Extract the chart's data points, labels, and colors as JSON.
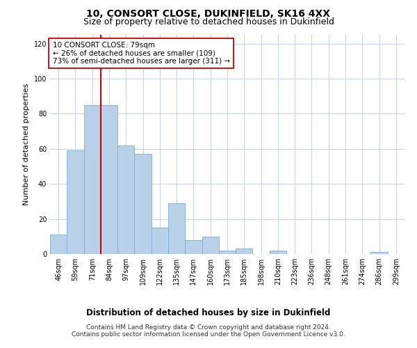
{
  "title": "10, CONSORT CLOSE, DUKINFIELD, SK16 4XX",
  "subtitle": "Size of property relative to detached houses in Dukinfield",
  "xlabel": "Distribution of detached houses by size in Dukinfield",
  "ylabel": "Number of detached properties",
  "categories": [
    "46sqm",
    "59sqm",
    "71sqm",
    "84sqm",
    "97sqm",
    "109sqm",
    "122sqm",
    "135sqm",
    "147sqm",
    "160sqm",
    "173sqm",
    "185sqm",
    "198sqm",
    "210sqm",
    "223sqm",
    "236sqm",
    "248sqm",
    "261sqm",
    "274sqm",
    "286sqm",
    "299sqm"
  ],
  "values": [
    11,
    59,
    85,
    85,
    62,
    57,
    15,
    29,
    8,
    10,
    2,
    3,
    0,
    2,
    0,
    0,
    0,
    0,
    0,
    1,
    0
  ],
  "bar_color": "#b8d0e8",
  "bar_edge_color": "#7aafd4",
  "bar_width": 1.0,
  "vline_x": 2.5,
  "vline_color": "#cc0000",
  "annotation_text": "10 CONSORT CLOSE: 79sqm\n← 26% of detached houses are smaller (109)\n73% of semi-detached houses are larger (311) →",
  "ylim": [
    0,
    125
  ],
  "yticks": [
    0,
    20,
    40,
    60,
    80,
    100,
    120
  ],
  "bg_color": "#ffffff",
  "grid_color": "#c8d4e8",
  "footer_line1": "Contains HM Land Registry data © Crown copyright and database right 2024.",
  "footer_line2": "Contains public sector information licensed under the Open Government Licence v3.0.",
  "title_fontsize": 10,
  "subtitle_fontsize": 9,
  "xlabel_fontsize": 8.5,
  "ylabel_fontsize": 8,
  "tick_fontsize": 7,
  "annotation_fontsize": 7.5,
  "footer_fontsize": 6.5
}
